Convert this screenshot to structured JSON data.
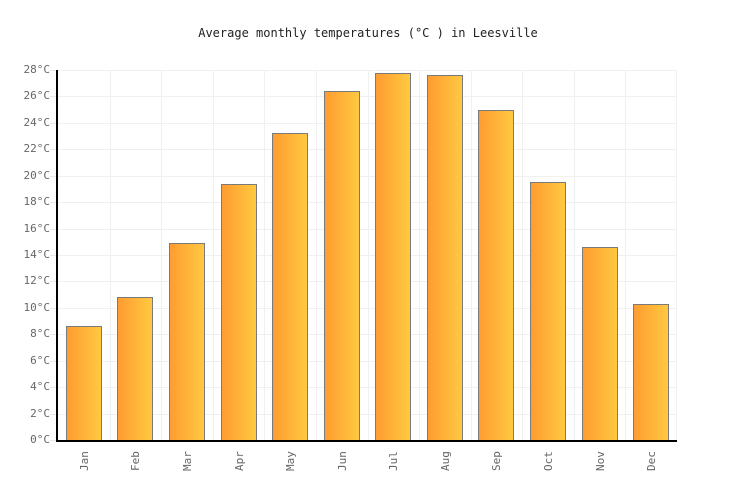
{
  "title": "Average monthly temperatures (°C ) in Leesville",
  "chart_data": {
    "type": "bar",
    "title": "Average monthly temperatures (°C ) in Leesville",
    "categories": [
      "Jan",
      "Feb",
      "Mar",
      "Apr",
      "May",
      "Jun",
      "Jul",
      "Aug",
      "Sep",
      "Oct",
      "Nov",
      "Dec"
    ],
    "values": [
      8.6,
      10.8,
      14.9,
      19.4,
      23.2,
      26.4,
      27.8,
      27.6,
      25.0,
      19.5,
      14.6,
      10.3
    ],
    "unit": "°C",
    "xlabel": "",
    "ylabel": "",
    "ylim": [
      0,
      28
    ],
    "ytick_step": 2,
    "ytick_suffix": "°C",
    "grid": true,
    "legend": false,
    "colors": {
      "bar_gradient_left": "#FF9C31",
      "bar_gradient_right": "#FFC940",
      "bar_border": "#7A7A7A",
      "grid_line": "#F0F0F0",
      "axis_tick": "#E8E8E8",
      "axis_line": "#000000",
      "tick_label": "#666666",
      "title_text": "#222222"
    }
  }
}
